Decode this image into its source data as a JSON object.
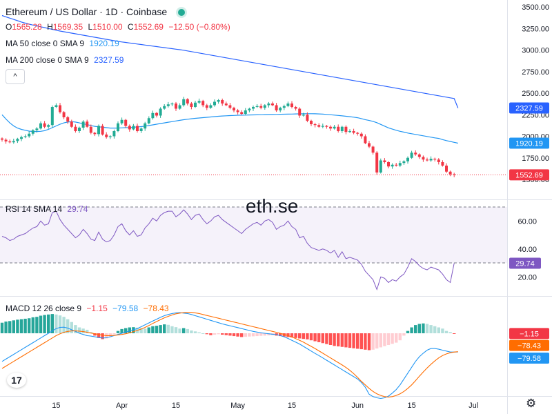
{
  "header": {
    "title": "Ethereum / US Dollar · 1D · Coinbase",
    "ohlc": {
      "o_label": "O",
      "o": "1565.28",
      "h_label": "H",
      "h": "1569.35",
      "l_label": "L",
      "l": "1510.00",
      "c_label": "C",
      "c": "1552.69",
      "change": "−12.50 (−0.80%)"
    },
    "ma50_label": "MA 50 close 0 SMA 9",
    "ma50_value": "1920.19",
    "ma200_label": "MA 200 close 0 SMA 9",
    "ma200_value": "2327.59",
    "toggle_icon": "chevron-up-icon",
    "toggle_glyph": "^",
    "status_dot_color": "#22ab94"
  },
  "rsi_legend": {
    "label": "RSI 14 SMA 14",
    "value": "29.74"
  },
  "macd_legend": {
    "label": "MACD 12 26 close 9",
    "hist": "−1.15",
    "macd": "−79.58",
    "signal": "−78.43"
  },
  "watermark": "eth.se",
  "logo_text": "17",
  "settings_icon": "gear-icon",
  "settings_glyph": "⚙",
  "colors": {
    "up": "#22ab94",
    "down": "#f23645",
    "ma50": "#2196f3",
    "ma200": "#2962ff",
    "rsi": "#7e57c2",
    "macd": "#2196f3",
    "signal": "#ff6d00"
  },
  "chart_data": [
    {
      "type": "candlestick",
      "title": "Ethereum / US Dollar · 1D · Coinbase",
      "y_ticks": [
        "3500.00",
        "3250.00",
        "3000.00",
        "2750.00",
        "2500.00",
        "2250.00",
        "2000.00",
        "1750.00",
        "1500.00"
      ],
      "ylim": [
        1500,
        3500
      ],
      "x_ticks": [
        "15",
        "Apr",
        "15",
        "May",
        "15",
        "Jun",
        "15",
        "Jul"
      ],
      "x_tick_days": [
        14,
        31,
        45,
        61,
        75,
        92,
        106,
        122
      ],
      "price_labels": [
        {
          "text": "2327.59",
          "value": 2327.59,
          "color": "#2962ff"
        },
        {
          "text": "1920.19",
          "value": 1920.19,
          "color": "#2196f3"
        },
        {
          "text": "1552.69",
          "value": 1552.69,
          "color": "#f23645"
        }
      ],
      "last_price": 1552.69,
      "close": [
        1960,
        1940,
        1930,
        1945,
        1970,
        1990,
        2000,
        2030,
        2070,
        2090,
        2150,
        2110,
        2130,
        2340,
        2360,
        2280,
        2220,
        2170,
        2110,
        2060,
        2100,
        2170,
        2110,
        2040,
        2025,
        2120,
        2020,
        1990,
        2000,
        2060,
        2150,
        2190,
        2120,
        2080,
        2120,
        2060,
        2090,
        2150,
        2210,
        2270,
        2240,
        2320,
        2350,
        2370,
        2380,
        2320,
        2360,
        2430,
        2380,
        2340,
        2390,
        2410,
        2360,
        2330,
        2360,
        2400,
        2420,
        2380,
        2360,
        2330,
        2300,
        2280,
        2260,
        2300,
        2320,
        2340,
        2350,
        2330,
        2360,
        2380,
        2360,
        2300,
        2330,
        2350,
        2380,
        2340,
        2320,
        2240,
        2250,
        2180,
        2140,
        2130,
        2110,
        2120,
        2110,
        2090,
        2110,
        2060,
        2110,
        2050,
        2060,
        2040,
        2030,
        2000,
        1920,
        1880,
        1810,
        1580,
        1720,
        1700,
        1650,
        1670,
        1660,
        1690,
        1710,
        1750,
        1810,
        1790,
        1760,
        1730,
        1720,
        1740,
        1730,
        1700,
        1660,
        1590,
        1560,
        1552.69
      ],
      "ma50": [
        2250,
        2200,
        2155,
        2120,
        2095,
        2080,
        2070,
        2060,
        2055,
        2055,
        2058,
        2065,
        2080,
        2100,
        2120,
        2140,
        2155,
        2165,
        2170,
        2165,
        2155,
        2145,
        2135,
        2125,
        2115,
        2110,
        2105,
        2100,
        2095,
        2095,
        2095,
        2098,
        2100,
        2102,
        2105,
        2108,
        2112,
        2118,
        2125,
        2132,
        2140,
        2148,
        2155,
        2163,
        2170,
        2178,
        2185,
        2192,
        2198,
        2203,
        2208,
        2212,
        2216,
        2220,
        2224,
        2228,
        2232,
        2235,
        2238,
        2240,
        2242,
        2244,
        2245,
        2246,
        2247,
        2248,
        2249,
        2250,
        2251,
        2252,
        2253,
        2254,
        2255,
        2256,
        2257,
        2258,
        2259,
        2260,
        2261,
        2262,
        2262,
        2261,
        2259,
        2257,
        2254,
        2250,
        2246,
        2242,
        2237,
        2232,
        2227,
        2222,
        2215,
        2205,
        2193,
        2183,
        2173,
        2158,
        2138,
        2118,
        2098,
        2083,
        2070,
        2058,
        2048,
        2038,
        2030,
        2022,
        2014,
        2006,
        1998,
        1990,
        1982,
        1975,
        1962,
        1950,
        1940,
        1930,
        1920.19
      ],
      "ma200": [
        3400,
        3385,
        3370,
        3355,
        3340,
        3325,
        3312,
        3300,
        3290,
        3280,
        3270,
        3260,
        3250,
        3240,
        3230,
        3220,
        3212,
        3204,
        3196,
        3188,
        3180,
        3172,
        3164,
        3156,
        3148,
        3140,
        3132,
        3124,
        3116,
        3108,
        3100,
        3094,
        3088,
        3082,
        3076,
        3070,
        3064,
        3058,
        3052,
        3046,
        3040,
        3034,
        3028,
        3022,
        3016,
        3010,
        3004,
        2998,
        2990,
        2982,
        2974,
        2966,
        2958,
        2950,
        2942,
        2934,
        2926,
        2918,
        2910,
        2902,
        2894,
        2886,
        2878,
        2870,
        2862,
        2854,
        2846,
        2838,
        2830,
        2822,
        2814,
        2806,
        2798,
        2790,
        2782,
        2774,
        2766,
        2758,
        2750,
        2742,
        2734,
        2726,
        2718,
        2710,
        2702,
        2694,
        2686,
        2678,
        2670,
        2662,
        2654,
        2646,
        2638,
        2630,
        2622,
        2614,
        2606,
        2598,
        2590,
        2582,
        2574,
        2566,
        2558,
        2550,
        2542,
        2534,
        2526,
        2518,
        2510,
        2502,
        2494,
        2486,
        2478,
        2470,
        2462,
        2454,
        2446,
        2438,
        2327.59
      ]
    },
    {
      "type": "line",
      "title": "RSI 14 SMA 14",
      "y_ticks": [
        "60.00",
        "40.00",
        "20.00"
      ],
      "tick_values": [
        60,
        40,
        20
      ],
      "ylim": [
        10,
        70
      ],
      "band": [
        30,
        70
      ],
      "value_label": "29.74",
      "values": [
        49,
        48,
        46,
        47,
        49,
        50,
        51,
        53,
        55,
        56,
        60,
        57,
        58,
        66,
        67,
        61,
        57,
        54,
        51,
        48,
        50,
        54,
        51,
        47,
        46,
        52,
        47,
        45,
        46,
        50,
        56,
        58,
        53,
        50,
        53,
        49,
        50,
        55,
        58,
        62,
        60,
        64,
        66,
        67,
        67,
        63,
        65,
        68,
        65,
        61,
        64,
        65,
        61,
        58,
        60,
        63,
        64,
        61,
        59,
        57,
        55,
        53,
        51,
        54,
        56,
        58,
        59,
        57,
        60,
        61,
        59,
        54,
        56,
        57,
        60,
        56,
        54,
        48,
        49,
        44,
        41,
        40,
        39,
        40,
        39,
        37,
        39,
        34,
        38,
        33,
        34,
        33,
        32,
        29,
        24,
        21,
        18,
        11,
        20,
        19,
        16,
        18,
        17,
        20,
        22,
        27,
        33,
        31,
        28,
        26,
        25,
        27,
        26,
        25,
        22,
        18,
        16,
        29.74
      ]
    },
    {
      "type": "bar+line",
      "title": "MACD 12 26 close 9",
      "value_labels": {
        "hist": "−1.15",
        "signal": "−78.43",
        "macd": "−79.58"
      },
      "histogram": [
        45,
        50,
        52,
        55,
        58,
        60,
        62,
        64,
        68,
        70,
        75,
        78,
        80,
        82,
        80,
        76,
        70,
        60,
        48,
        35,
        25,
        20,
        15,
        5,
        -10,
        -20,
        -25,
        -22,
        -15,
        -5,
        10,
        18,
        22,
        25,
        26,
        24,
        22,
        20,
        25,
        30,
        32,
        35,
        38,
        36,
        30,
        26,
        20,
        22,
        18,
        12,
        8,
        4,
        0,
        -4,
        -8,
        -6,
        -4,
        -6,
        -8,
        -10,
        -12,
        -14,
        -16,
        -15,
        -14,
        -13,
        -12,
        -11,
        -10,
        -9,
        -8,
        -10,
        -12,
        -14,
        -16,
        -18,
        -20,
        -22,
        -24,
        -26,
        -30,
        -34,
        -38,
        -42,
        -46,
        -50,
        -54,
        -56,
        -58,
        -60,
        -62,
        -64,
        -66,
        -68,
        -70,
        -72,
        -70,
        -65,
        -60,
        -55,
        -50,
        -45,
        -40,
        -30,
        -10,
        10,
        25,
        35,
        40,
        42,
        40,
        35,
        30,
        25,
        20,
        10,
        5,
        -1.15
      ],
      "macd": [
        -120,
        -110,
        -100,
        -90,
        -80,
        -70,
        -60,
        -50,
        -40,
        -30,
        -20,
        -10,
        0,
        10,
        20,
        25,
        26,
        22,
        15,
        8,
        0,
        -5,
        -10,
        -12,
        -15,
        -18,
        -20,
        -19,
        -15,
        -10,
        -5,
        0,
        5,
        10,
        15,
        20,
        28,
        36,
        44,
        52,
        60,
        68,
        75,
        80,
        84,
        87,
        88,
        86,
        84,
        80,
        75,
        70,
        65,
        60,
        55,
        50,
        45,
        40,
        36,
        32,
        28,
        24,
        20,
        16,
        12,
        8,
        5,
        2,
        0,
        -2,
        -4,
        -6,
        -10,
        -15,
        -22,
        -30,
        -38,
        -46,
        -56,
        -66,
        -76,
        -86,
        -95,
        -105,
        -115,
        -125,
        -135,
        -145,
        -155,
        -165,
        -175,
        -185,
        -195,
        -210,
        -230,
        -260,
        -270,
        -275,
        -278,
        -275,
        -268,
        -255,
        -240,
        -220,
        -195,
        -170,
        -145,
        -120,
        -100,
        -85,
        -72,
        -65,
        -65,
        -68,
        -72,
        -76,
        -80,
        -80,
        -79.58
      ],
      "signal": [
        -150,
        -140,
        -130,
        -120,
        -110,
        -100,
        -90,
        -80,
        -70,
        -60,
        -50,
        -40,
        -30,
        -20,
        -10,
        -2,
        4,
        8,
        10,
        10,
        9,
        7,
        4,
        1,
        -2,
        -5,
        -8,
        -10,
        -10,
        -9,
        -7,
        -5,
        -2,
        2,
        7,
        12,
        18,
        25,
        33,
        42,
        50,
        58,
        66,
        72,
        78,
        83,
        86,
        88,
        89,
        89,
        87,
        84,
        80,
        76,
        72,
        68,
        64,
        60,
        56,
        52,
        48,
        44,
        40,
        36,
        32,
        28,
        24,
        20,
        16,
        12,
        8,
        4,
        0,
        -5,
        -10,
        -16,
        -23,
        -30,
        -38,
        -47,
        -56,
        -65,
        -75,
        -85,
        -95,
        -105,
        -115,
        -125,
        -135,
        -146,
        -158,
        -172,
        -188,
        -205,
        -220,
        -235,
        -248,
        -258,
        -265,
        -270,
        -272,
        -270,
        -265,
        -258,
        -248,
        -235,
        -220,
        -202,
        -183,
        -165,
        -148,
        -132,
        -118,
        -105,
        -95,
        -88,
        -83,
        -80,
        -78.43
      ]
    }
  ]
}
